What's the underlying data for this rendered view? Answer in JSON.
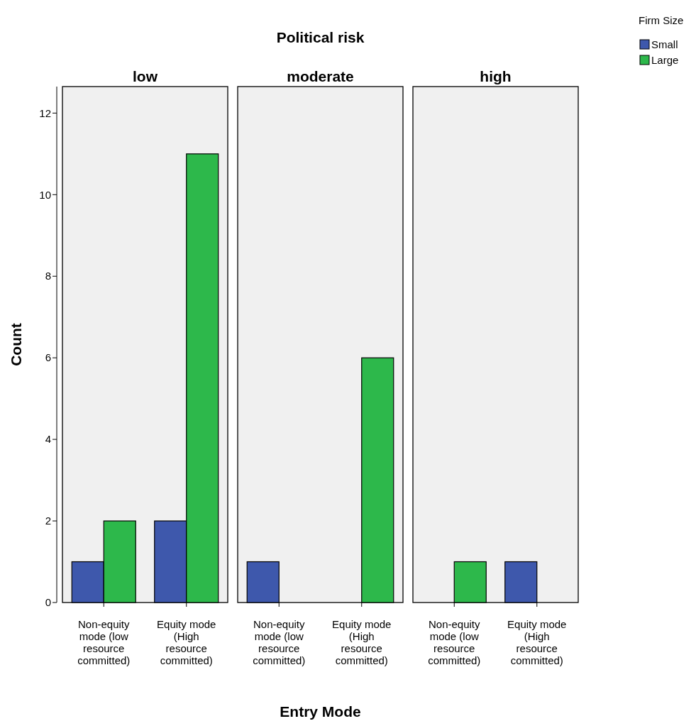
{
  "chart_data": [
    {
      "type": "bar",
      "title": "low",
      "ylabel": "Count",
      "categories": [
        "Non-equity mode (low resource committed)",
        "Equity mode (High resource committed)"
      ],
      "ylim": [
        0,
        12.65
      ],
      "yticks": [
        0,
        2,
        4,
        6,
        8,
        10,
        12
      ],
      "series": [
        {
          "color": "#3e58ac",
          "values": [
            1,
            2
          ]
        },
        {
          "color": "#2db84b",
          "values": [
            2,
            11
          ]
        }
      ]
    },
    {
      "type": "bar",
      "title": "moderate",
      "xlabel": "Entry Mode",
      "annotations": [
        "Political risk"
      ],
      "categories": [
        "Non-equity mode (low resource committed)",
        "Equity mode (High resource committed)"
      ],
      "ylim": [
        0,
        12.65
      ],
      "tick_labels": "x",
      "series": [
        {
          "color": "#3e58ac",
          "values": [
            1,
            null
          ]
        },
        {
          "color": "#2db84b",
          "values": [
            null,
            6
          ]
        }
      ]
    },
    {
      "type": "bar",
      "title": "high",
      "legend_title": "Firm Size",
      "legend": "top right",
      "categories": [
        "Non-equity mode (low resource committed)",
        "Equity mode (High resource committed)"
      ],
      "ylim": [
        0,
        12.65
      ],
      "tick_labels": "x",
      "series": [
        {
          "name": "Small",
          "color": "#3e58ac",
          "values": [
            null,
            1
          ]
        },
        {
          "name": "Large",
          "color": "#2db84b",
          "values": [
            1,
            null
          ]
        }
      ]
    }
  ]
}
